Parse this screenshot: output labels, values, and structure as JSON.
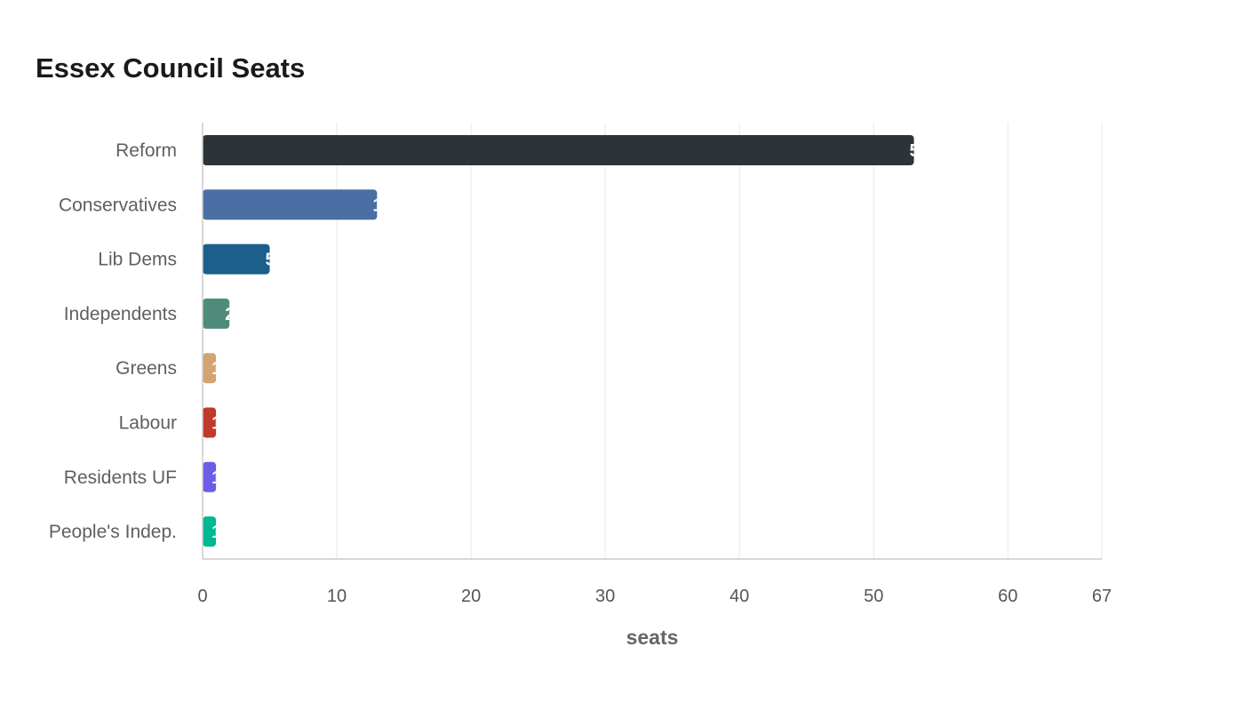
{
  "chart_data": {
    "type": "bar",
    "orientation": "horizontal",
    "title": "Essex Council Seats",
    "xlabel": "seats",
    "ylabel": "",
    "categories": [
      "Reform",
      "Conservatives",
      "Lib Dems",
      "Independents",
      "Greens",
      "Labour",
      "Residents UF",
      "People's Indep."
    ],
    "values": [
      53,
      13,
      5,
      2,
      1,
      1,
      1,
      1
    ],
    "colors": [
      "#2c3437",
      "#4a6fa5",
      "#1b5f8a",
      "#4e8b7a",
      "#d4a373",
      "#c0392b",
      "#6c5ce7",
      "#00b894"
    ],
    "xlim": [
      0,
      67
    ],
    "xticks": [
      0,
      10,
      20,
      30,
      40,
      50,
      60,
      67
    ],
    "grid": "vertical",
    "legend": "none",
    "data_labels": "inside-end"
  }
}
